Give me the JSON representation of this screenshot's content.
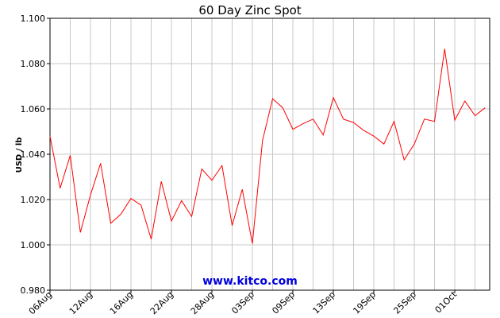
{
  "chart_data": {
    "type": "line",
    "title": "60 Day Zinc Spot",
    "ylabel": "USD / lb",
    "xlabel": "",
    "ylim": [
      0.98,
      1.1
    ],
    "yticks": [
      "0.980",
      "1.000",
      "1.020",
      "1.040",
      "1.060",
      "1.080",
      "1.100"
    ],
    "xtick_labels": [
      "06Aug",
      "12Aug",
      "16Aug",
      "22Aug",
      "28Aug",
      "03Sep",
      "09Sep",
      "13Sep",
      "19Sep",
      "25Sep",
      "01Oct"
    ],
    "xtick_index": [
      0,
      4,
      8,
      12,
      16,
      20,
      24,
      28,
      32,
      36,
      40
    ],
    "grid": true,
    "series_color": "#ff0000",
    "series": [
      {
        "values": [
          1.048,
          1.025,
          1.0395,
          1.0055,
          1.022,
          1.036,
          1.0095,
          1.0135,
          1.0205,
          1.0175,
          1.0025,
          1.028,
          1.0105,
          1.0195,
          1.0125,
          1.0335,
          1.0285,
          1.035,
          1.0085,
          1.0245,
          1.0005,
          1.046,
          1.0645,
          1.0605,
          1.051,
          1.0535,
          1.0555,
          1.0485,
          1.065,
          1.0555,
          1.054,
          1.0505,
          1.048,
          1.0445,
          1.0545,
          1.0375,
          1.0445,
          1.0555,
          1.0545,
          1.0865,
          1.055,
          1.0635,
          1.057,
          1.0605
        ]
      }
    ],
    "watermark": "www.kitco.com"
  }
}
